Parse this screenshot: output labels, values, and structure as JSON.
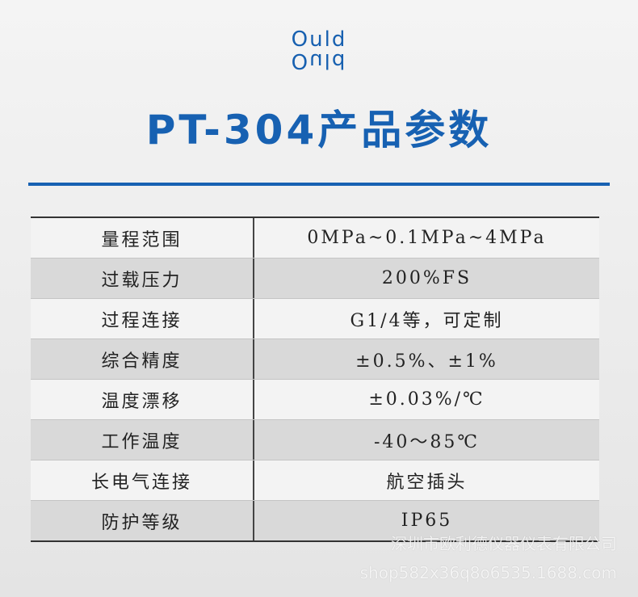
{
  "header": {
    "logo": "Ould",
    "title": "PT-304产品参数"
  },
  "table": {
    "rows": [
      [
        "量程范围",
        "0MPa~0.1MPa~4MPa"
      ],
      [
        "过载压力",
        "200%FS"
      ],
      [
        "过程连接",
        "G1/4等，可定制"
      ],
      [
        "综合精度",
        "±0.5%、±1%"
      ],
      [
        "温度漂移",
        "±0.03%/℃"
      ],
      [
        "工作温度",
        "-40～85℃"
      ],
      [
        "长电气连接",
        "航空插头"
      ],
      [
        "防护等级",
        "IP65"
      ]
    ]
  },
  "watermark": {
    "company": "深圳市欧利德仪器仪表有限公司",
    "shop": "shop582x36q8o6535.1688.com"
  }
}
